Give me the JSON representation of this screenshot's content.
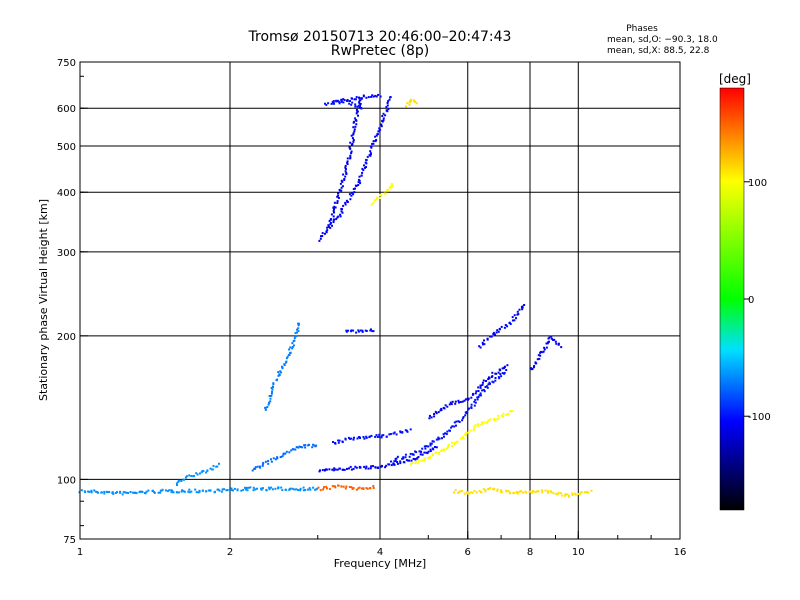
{
  "chart_data": {
    "type": "scatter",
    "title": "Tromsø 20150713 20:46:00–20:47:43",
    "subtitle": "RwPretec (8p)",
    "xlabel": "Frequency [MHz]",
    "ylabel": "Stationary phase Virtual Height [km]",
    "x_scale": "log",
    "y_scale": "log",
    "xlim": [
      1,
      16
    ],
    "ylim": [
      75,
      750
    ],
    "grid": true,
    "x_ticks": [
      {
        "value": 1,
        "label": "1"
      },
      {
        "value": 2,
        "label": "2"
      },
      {
        "value": 4,
        "label": "4"
      },
      {
        "value": 6,
        "label": "6"
      },
      {
        "value": 8,
        "label": "8"
      },
      {
        "value": 10,
        "label": "10"
      },
      {
        "value": 16,
        "label": "16"
      }
    ],
    "y_ticks": [
      {
        "value": 75,
        "label": "75"
      },
      {
        "value": 100,
        "label": "100"
      },
      {
        "value": 200,
        "label": "200"
      },
      {
        "value": 300,
        "label": "300"
      },
      {
        "value": 400,
        "label": "400"
      },
      {
        "value": 500,
        "label": "500"
      },
      {
        "value": 600,
        "label": "600"
      },
      {
        "value": 750,
        "label": "750"
      }
    ],
    "phases": {
      "title": "Phases",
      "o_line": "mean, sd,O: −90.3, 18.0",
      "x_line": "mean, sd,X:  88.5, 22.8"
    },
    "colorbar": {
      "label": "[deg]",
      "range": [
        -180,
        180
      ],
      "ticks": [
        {
          "value": 100,
          "label": "100"
        },
        {
          "value": 0,
          "label": "0"
        },
        {
          "value": -100,
          "label": "-100"
        }
      ]
    },
    "traces": [
      {
        "x": [
          1.0,
          1.2,
          1.5,
          1.8,
          2.2,
          2.6,
          3.0
        ],
        "h": [
          95,
          94,
          95,
          95,
          96,
          96,
          96
        ],
        "phase": -65
      },
      {
        "x": [
          2.2,
          2.5,
          2.75,
          3.0
        ],
        "h": [
          105,
          112,
          118,
          118
        ],
        "phase": -75
      },
      {
        "x": [
          2.35,
          2.45,
          2.55,
          2.65,
          2.75
        ],
        "h": [
          140,
          160,
          175,
          190,
          215
        ],
        "phase": -70
      },
      {
        "x": [
          1.55,
          1.65,
          1.8,
          1.9
        ],
        "h": [
          98,
          102,
          105,
          108
        ],
        "phase": -65
      },
      {
        "x": [
          3.0,
          3.3,
          3.6,
          3.9,
          4.2
        ],
        "h": [
          320,
          360,
          420,
          520,
          640
        ],
        "phase": -105
      },
      {
        "x": [
          3.15,
          3.3,
          3.45,
          3.55,
          3.65
        ],
        "h": [
          340,
          400,
          470,
          560,
          640
        ],
        "phase": -110
      },
      {
        "x": [
          3.2,
          3.5,
          3.8,
          4.0
        ],
        "h": [
          620,
          630,
          640,
          640
        ],
        "phase": -105
      },
      {
        "x": [
          3.1,
          3.4,
          3.7
        ],
        "h": [
          615,
          625,
          600
        ],
        "phase": -100
      },
      {
        "x": [
          4.5,
          4.6,
          4.75
        ],
        "h": [
          610,
          630,
          620
        ],
        "phase": 110
      },
      {
        "x": [
          3.85,
          4.05,
          4.25
        ],
        "h": [
          380,
          400,
          420
        ],
        "phase": 100
      },
      {
        "x": [
          3.0,
          3.5,
          4.0,
          4.6,
          5.2
        ],
        "h": [
          105,
          106,
          107,
          110,
          118
        ],
        "phase": -105
      },
      {
        "x": [
          3.2,
          3.6,
          4.1,
          4.6
        ],
        "h": [
          120,
          123,
          124,
          128
        ],
        "phase": -100
      },
      {
        "x": [
          4.2,
          4.8,
          5.4,
          6.0,
          6.6,
          7.2
        ],
        "h": [
          110,
          115,
          125,
          140,
          160,
          170
        ],
        "phase": -100
      },
      {
        "x": [
          5.0,
          5.5,
          6.0,
          6.6,
          7.2
        ],
        "h": [
          135,
          145,
          148,
          165,
          175
        ],
        "phase": -110
      },
      {
        "x": [
          6.3,
          6.8,
          7.3,
          7.8
        ],
        "h": [
          190,
          205,
          215,
          235
        ],
        "phase": -105
      },
      {
        "x": [
          8.0,
          8.4,
          8.8,
          9.2
        ],
        "h": [
          170,
          185,
          200,
          190
        ],
        "phase": -105
      },
      {
        "x": [
          4.6,
          5.0,
          5.4,
          5.8,
          6.2,
          6.8,
          7.4
        ],
        "h": [
          108,
          112,
          117,
          122,
          130,
          135,
          140
        ],
        "phase": 100
      },
      {
        "x": [
          3.4,
          3.7,
          3.9
        ],
        "h": [
          205,
          205,
          207
        ],
        "phase": -100
      },
      {
        "x": [
          3.0,
          3.3,
          3.6,
          3.9
        ],
        "h": [
          96,
          97,
          96,
          97
        ],
        "phase": 150
      },
      {
        "x": [
          5.6,
          6.0,
          6.6,
          7.4,
          8.4,
          9.6,
          10.6
        ],
        "h": [
          95,
          94,
          96,
          94,
          95,
          93,
          95
        ],
        "phase": 110
      }
    ]
  }
}
